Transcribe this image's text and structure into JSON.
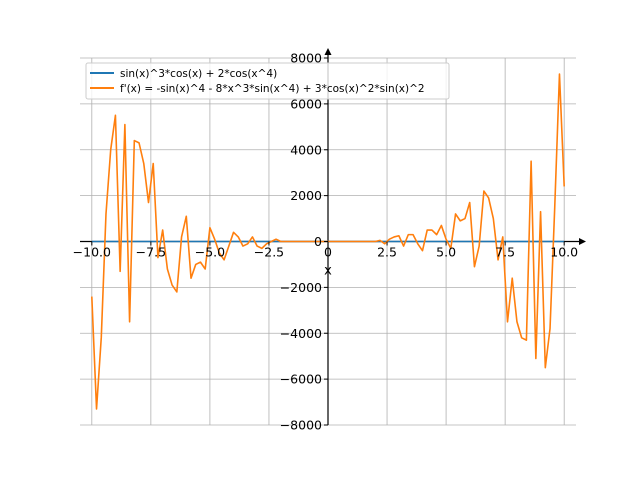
{
  "chart_data": {
    "type": "line",
    "title": "",
    "xlabel": "x",
    "ylabel": "",
    "xlim": [
      -10.5,
      10.5
    ],
    "ylim": [
      -8000,
      8000
    ],
    "grid": true,
    "legend_position": "top-left",
    "spines": "centered at origin with arrowheads",
    "x_ticks": [
      -10.0,
      -7.5,
      -5.0,
      -2.5,
      0,
      2.5,
      5.0,
      7.5,
      10.0
    ],
    "x_tick_labels": [
      "−10.0",
      "−7.5",
      "−5.0",
      "−2.5",
      "0",
      "2.5",
      "5.0",
      "7.5",
      "10.0"
    ],
    "y_ticks": [
      -8000,
      -6000,
      -4000,
      -2000,
      0,
      2000,
      4000,
      6000,
      8000
    ],
    "y_tick_labels": [
      "−8000",
      "−6000",
      "−4000",
      "−2000",
      "0",
      "2000",
      "4000",
      "6000",
      "8000"
    ],
    "series": [
      {
        "name": "sin(x)^3*cos(x) + 2*cos(x^4)",
        "color": "#1f77b4",
        "x": [
          -10,
          -5,
          0,
          5,
          10
        ],
        "y": [
          0,
          0,
          0,
          0,
          0
        ]
      },
      {
        "name": "f'(x) = -sin(x)^4 - 8*x^3*sin(x^4) + 3*cos(x)^2*sin(x)^2",
        "color": "#ff7f0e",
        "x": [
          -10.0,
          -9.8,
          -9.6,
          -9.4,
          -9.2,
          -9.0,
          -8.8,
          -8.6,
          -8.4,
          -8.2,
          -8.0,
          -7.8,
          -7.6,
          -7.4,
          -7.2,
          -7.0,
          -6.8,
          -6.6,
          -6.4,
          -6.2,
          -6.0,
          -5.8,
          -5.6,
          -5.4,
          -5.2,
          -5.0,
          -4.8,
          -4.6,
          -4.4,
          -4.2,
          -4.0,
          -3.8,
          -3.6,
          -3.4,
          -3.2,
          -3.0,
          -2.8,
          -2.6,
          -2.4,
          -2.2,
          -2.0,
          -1.8,
          -1.0,
          0.0,
          1.0,
          1.8,
          2.0,
          2.2,
          2.4,
          2.6,
          2.8,
          3.0,
          3.2,
          3.4,
          3.6,
          3.8,
          4.0,
          4.2,
          4.4,
          4.6,
          4.8,
          5.0,
          5.2,
          5.4,
          5.6,
          5.8,
          6.0,
          6.2,
          6.4,
          6.6,
          6.8,
          7.0,
          7.2,
          7.4,
          7.6,
          7.8,
          8.0,
          8.2,
          8.4,
          8.6,
          8.8,
          9.0,
          9.2,
          9.4,
          9.6,
          9.8,
          10.0
        ],
        "y": [
          -2400,
          -7300,
          -4200,
          1200,
          4000,
          5500,
          -1300,
          5100,
          -3500,
          4400,
          4300,
          3400,
          1700,
          3400,
          -700,
          500,
          -1200,
          -1900,
          -2200,
          200,
          1100,
          -1600,
          -1000,
          -900,
          -1200,
          600,
          100,
          -500,
          -800,
          -200,
          400,
          200,
          -200,
          -100,
          200,
          -200,
          -300,
          -100,
          0,
          100,
          0,
          0,
          0,
          0,
          0,
          0,
          0,
          50,
          -100,
          100,
          200,
          250,
          -200,
          300,
          300,
          -100,
          -400,
          500,
          500,
          300,
          700,
          100,
          -300,
          1200,
          900,
          1000,
          1700,
          -1100,
          -200,
          2200,
          1900,
          1000,
          -800,
          200,
          -3500,
          -1600,
          -3500,
          -4200,
          -4300,
          3500,
          -5100,
          1300,
          -5500,
          -3800,
          1500,
          7300,
          2400
        ]
      }
    ]
  }
}
